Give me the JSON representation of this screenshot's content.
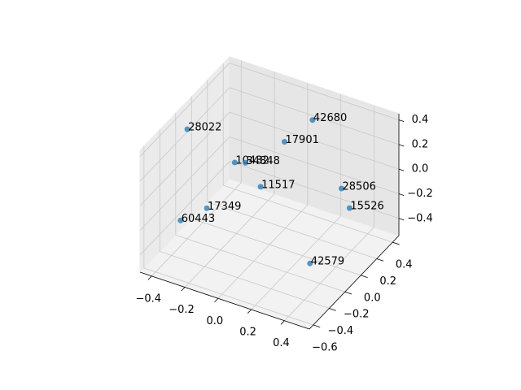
{
  "chart_data": {
    "type": "scatter3d",
    "labels": [
      "28022",
      "42680",
      "17901",
      "10432",
      "34848",
      "11517",
      "28506",
      "15526",
      "17349",
      "60443",
      "42579"
    ],
    "x": [
      -0.4,
      0.13,
      -0.01,
      -0.2,
      -0.15,
      -0.03,
      0.4,
      0.42,
      -0.23,
      -0.35,
      0.32
    ],
    "y": [
      -0.2,
      0.27,
      0.21,
      -0.02,
      0.01,
      -0.05,
      0.07,
      0.13,
      -0.31,
      -0.39,
      -0.16
    ],
    "z": [
      0.35,
      0.35,
      0.15,
      0.05,
      0.05,
      -0.05,
      0.05,
      -0.14,
      -0.14,
      -0.24,
      -0.44
    ],
    "color": "#1f77b4",
    "xlim": [
      -0.47,
      0.55
    ],
    "ylim": [
      -0.65,
      0.48
    ],
    "zlim": [
      -0.54,
      0.45
    ],
    "xticks": [
      {
        "value": -0.4,
        "label": "−0.4"
      },
      {
        "value": -0.2,
        "label": "−0.2"
      },
      {
        "value": 0.0,
        "label": "0.0"
      },
      0.2,
      0.4
    ],
    "yticks": [
      {
        "value": -0.6,
        "label": "−0.6"
      },
      {
        "value": -0.4,
        "label": "−0.4"
      },
      {
        "value": -0.2,
        "label": "−0.2"
      },
      {
        "value": 0.0,
        "label": "0.0"
      },
      0.2,
      0.4
    ],
    "zticks": [
      {
        "value": -0.4,
        "label": "−0.4"
      },
      {
        "value": -0.2,
        "label": "−0.2"
      },
      {
        "value": 0.0,
        "label": "0.0"
      },
      0.2,
      0.4
    ],
    "grid": true
  }
}
